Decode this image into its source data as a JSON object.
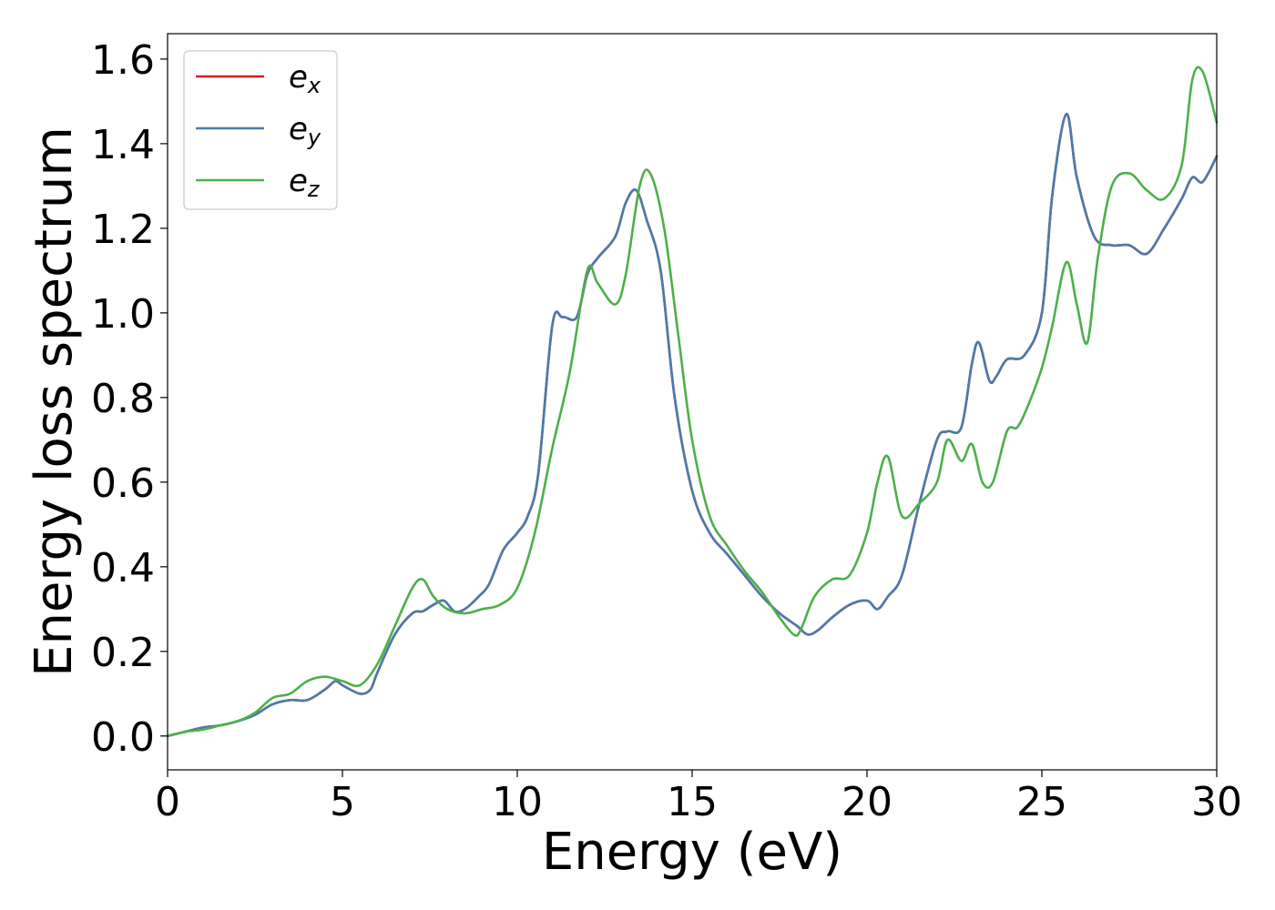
{
  "chart_data": {
    "type": "line",
    "xlabel": "Energy (eV)",
    "ylabel": "Energy loss spectrum",
    "xlim": [
      0,
      30
    ],
    "ylim": [
      -0.08,
      1.66
    ],
    "xticks": [
      0,
      5,
      10,
      15,
      20,
      25,
      30
    ],
    "yticks": [
      0.0,
      0.2,
      0.4,
      0.6,
      0.8,
      1.0,
      1.2,
      1.4,
      1.6
    ],
    "xtick_labels": [
      "0",
      "5",
      "10",
      "15",
      "20",
      "25",
      "30"
    ],
    "ytick_labels": [
      "0.0",
      "0.2",
      "0.4",
      "0.6",
      "0.8",
      "1.0",
      "1.2",
      "1.4",
      "1.6"
    ],
    "grid": false,
    "legend": "top-left",
    "series": [
      {
        "name": "e",
        "sub": "x",
        "color": "#e41a1c",
        "x": [
          0,
          0.5,
          1,
          1.5,
          2,
          2.5,
          3,
          3.5,
          4,
          4.5,
          4.8,
          5,
          5.5,
          5.8,
          6,
          6.5,
          7,
          7.3,
          7.6,
          7.9,
          8.2,
          8.5,
          8.9,
          9.2,
          9.6,
          10,
          10.3,
          10.6,
          11,
          11.3,
          11.7,
          12,
          12.3,
          12.8,
          13.1,
          13.4,
          13.7,
          14.1,
          14.5,
          15,
          15.5,
          16,
          16.5,
          17,
          17.5,
          18,
          18.3,
          18.6,
          19,
          19.5,
          20,
          20.3,
          20.6,
          21,
          21.5,
          22,
          22.3,
          22.7,
          23,
          23.2,
          23.5,
          23.7,
          24,
          24.5,
          25,
          25.3,
          25.7,
          26,
          26.5,
          27,
          27.5,
          28,
          28.5,
          29,
          29.3,
          29.6,
          30
        ],
        "values": [
          0,
          0.01,
          0.02,
          0.025,
          0.035,
          0.05,
          0.075,
          0.085,
          0.085,
          0.11,
          0.13,
          0.12,
          0.1,
          0.11,
          0.15,
          0.24,
          0.29,
          0.295,
          0.31,
          0.32,
          0.295,
          0.3,
          0.33,
          0.36,
          0.44,
          0.48,
          0.52,
          0.62,
          0.97,
          0.99,
          0.99,
          1.09,
          1.13,
          1.18,
          1.26,
          1.29,
          1.22,
          1.1,
          0.8,
          0.58,
          0.48,
          0.43,
          0.38,
          0.33,
          0.29,
          0.26,
          0.24,
          0.25,
          0.28,
          0.31,
          0.32,
          0.3,
          0.33,
          0.38,
          0.55,
          0.7,
          0.72,
          0.73,
          0.88,
          0.93,
          0.84,
          0.85,
          0.89,
          0.9,
          1.0,
          1.28,
          1.47,
          1.32,
          1.18,
          1.16,
          1.16,
          1.14,
          1.2,
          1.27,
          1.32,
          1.31,
          1.37
        ]
      },
      {
        "name": "e",
        "sub": "y",
        "color": "#4a7aac",
        "x": [
          0,
          0.5,
          1,
          1.5,
          2,
          2.5,
          3,
          3.5,
          4,
          4.5,
          4.8,
          5,
          5.5,
          5.8,
          6,
          6.5,
          7,
          7.3,
          7.6,
          7.9,
          8.2,
          8.5,
          8.9,
          9.2,
          9.6,
          10,
          10.3,
          10.6,
          11,
          11.3,
          11.7,
          12,
          12.3,
          12.8,
          13.1,
          13.4,
          13.7,
          14.1,
          14.5,
          15,
          15.5,
          16,
          16.5,
          17,
          17.5,
          18,
          18.3,
          18.6,
          19,
          19.5,
          20,
          20.3,
          20.6,
          21,
          21.5,
          22,
          22.3,
          22.7,
          23,
          23.2,
          23.5,
          23.7,
          24,
          24.5,
          25,
          25.3,
          25.7,
          26,
          26.5,
          27,
          27.5,
          28,
          28.5,
          29,
          29.3,
          29.6,
          30
        ],
        "values": [
          0,
          0.01,
          0.02,
          0.025,
          0.035,
          0.05,
          0.075,
          0.085,
          0.085,
          0.11,
          0.13,
          0.12,
          0.1,
          0.11,
          0.15,
          0.24,
          0.29,
          0.295,
          0.31,
          0.32,
          0.295,
          0.3,
          0.33,
          0.36,
          0.44,
          0.48,
          0.52,
          0.62,
          0.97,
          0.99,
          0.99,
          1.09,
          1.13,
          1.18,
          1.26,
          1.29,
          1.22,
          1.1,
          0.8,
          0.58,
          0.48,
          0.43,
          0.38,
          0.33,
          0.29,
          0.26,
          0.24,
          0.25,
          0.28,
          0.31,
          0.32,
          0.3,
          0.33,
          0.38,
          0.55,
          0.7,
          0.72,
          0.73,
          0.88,
          0.93,
          0.84,
          0.85,
          0.89,
          0.9,
          1.0,
          1.28,
          1.47,
          1.32,
          1.18,
          1.16,
          1.16,
          1.14,
          1.2,
          1.27,
          1.32,
          1.31,
          1.37
        ]
      },
      {
        "name": "e",
        "sub": "z",
        "color": "#4daf4a",
        "x": [
          0,
          0.5,
          1,
          1.5,
          2,
          2.5,
          3,
          3.5,
          4,
          4.5,
          5,
          5.5,
          6,
          6.5,
          7,
          7.3,
          7.6,
          8,
          8.5,
          9,
          9.5,
          10,
          10.5,
          11,
          11.5,
          12,
          12.3,
          12.8,
          13.1,
          13.5,
          13.8,
          14.2,
          14.6,
          15,
          15.5,
          16,
          16.5,
          17,
          17.5,
          17.9,
          18.1,
          18.5,
          19,
          19.5,
          20,
          20.3,
          20.6,
          21,
          21.5,
          22,
          22.3,
          22.7,
          23,
          23.3,
          23.6,
          24,
          24.3,
          24.6,
          25,
          25.3,
          25.7,
          26,
          26.3,
          26.6,
          27,
          27.5,
          28,
          28.5,
          29,
          29.3,
          29.6,
          30
        ],
        "values": [
          0,
          0.01,
          0.015,
          0.025,
          0.035,
          0.055,
          0.09,
          0.1,
          0.13,
          0.14,
          0.13,
          0.12,
          0.17,
          0.26,
          0.35,
          0.37,
          0.33,
          0.3,
          0.29,
          0.3,
          0.31,
          0.35,
          0.48,
          0.68,
          0.86,
          1.1,
          1.07,
          1.02,
          1.09,
          1.3,
          1.33,
          1.2,
          0.95,
          0.7,
          0.52,
          0.45,
          0.39,
          0.34,
          0.28,
          0.24,
          0.25,
          0.33,
          0.37,
          0.38,
          0.48,
          0.6,
          0.66,
          0.52,
          0.55,
          0.6,
          0.7,
          0.65,
          0.69,
          0.6,
          0.6,
          0.72,
          0.73,
          0.78,
          0.87,
          0.97,
          1.12,
          1.02,
          0.93,
          1.13,
          1.3,
          1.33,
          1.29,
          1.27,
          1.35,
          1.55,
          1.57,
          1.45
        ]
      }
    ]
  }
}
